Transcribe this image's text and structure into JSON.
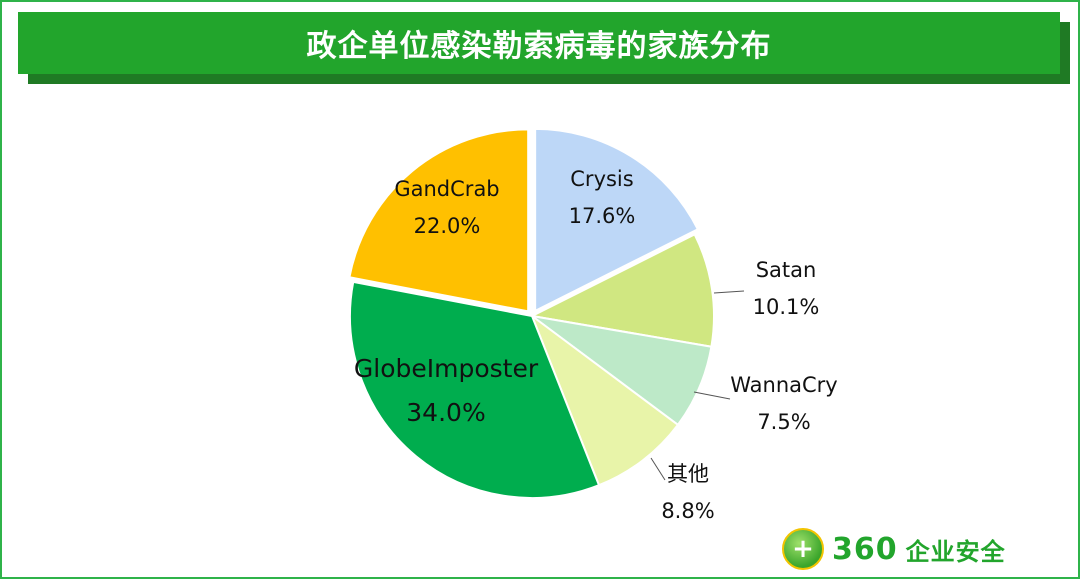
{
  "chart_data": {
    "type": "pie",
    "title": "政企单位感染勒索病毒的家族分布",
    "slices": [
      {
        "label": "Crysis",
        "value": 17.6,
        "value_label": "17.6%",
        "color": "#bdd7f7"
      },
      {
        "label": "Satan",
        "value": 10.1,
        "value_label": "10.1%",
        "color": "#d0e781"
      },
      {
        "label": "WannaCry",
        "value": 7.5,
        "value_label": "7.5%",
        "color": "#bde9c8"
      },
      {
        "label": "其他",
        "value": 8.8,
        "value_label": "8.8%",
        "color": "#e8f4a9"
      },
      {
        "label": "GlobeImposter",
        "value": 34.0,
        "value_label": "34.0%",
        "color": "#00ad4e"
      },
      {
        "label": "GandCrab",
        "value": 22.0,
        "value_label": "22.0%",
        "color": "#ffc000"
      }
    ]
  },
  "brand": {
    "badge_icon": "plus-icon",
    "badge_glyph": "+",
    "number": "360",
    "text": "企业安全",
    "color": "#22a52c"
  }
}
